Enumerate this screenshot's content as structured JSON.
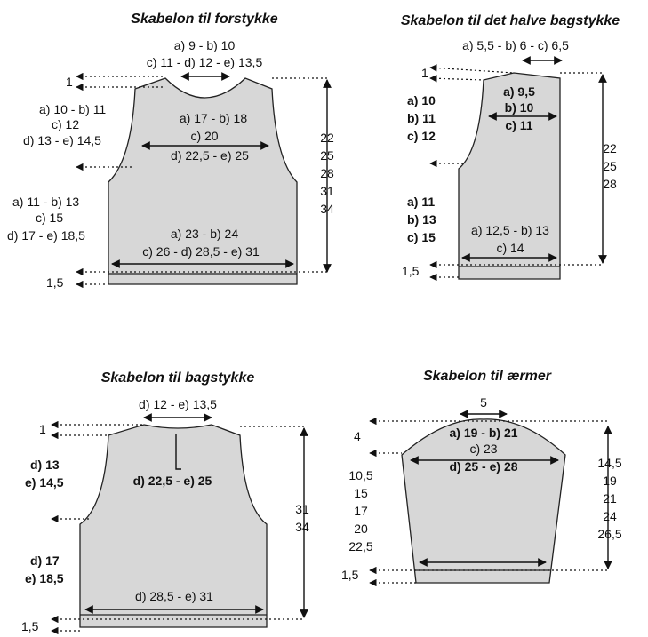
{
  "front": {
    "title": "Skabelon til forstykke",
    "neck_line1": "a) 9 - b) 10",
    "neck_line2": "c) 11 - d) 12 - e) 13,5",
    "top_label": "1",
    "armhole_1": "a) 10 - b) 11",
    "armhole_2": "c) 12",
    "armhole_3": "d) 13 - e) 14,5",
    "chest_1": "a) 17 - b) 18",
    "chest_2": "c) 20",
    "chest_3": "d) 22,5 - e) 25",
    "side_1": "a) 11 - b) 13",
    "side_2": "c) 15",
    "side_3": "d) 17 - e) 18,5",
    "hem_w1": "a) 23 - b) 24",
    "hem_w2": "c) 26 - d) 28,5 - e) 31",
    "hem_label": "1,5",
    "heights": [
      "22",
      "25",
      "28",
      "31",
      "34"
    ]
  },
  "half_back": {
    "title": "Skabelon til det halve bagstykke",
    "neck": "a) 5,5 - b) 6 - c) 6,5",
    "top_label": "1",
    "armhole": [
      "a) 10",
      "b) 11",
      "c) 12"
    ],
    "chest": [
      "a) 9,5",
      "b) 10",
      "c) 11"
    ],
    "side": [
      "a) 11",
      "b) 13",
      "c) 15"
    ],
    "hem_w1": "a) 12,5 - b) 13",
    "hem_w2": "c) 14",
    "hem_label": "1,5",
    "heights": [
      "22",
      "25",
      "28"
    ]
  },
  "back": {
    "title": "Skabelon til bagstykke",
    "neck": "d) 12 - e) 13,5",
    "top_label": "1",
    "armhole": [
      "d) 13",
      "e) 14,5"
    ],
    "chest": "d) 22,5 - e) 25",
    "side": [
      "d) 17",
      "e) 18,5"
    ],
    "hem_w": "d) 28,5 - e) 31",
    "hem_label": "1,5",
    "heights": [
      "31",
      "34"
    ]
  },
  "sleeve": {
    "title": "Skabelon til ærmer",
    "top": "5",
    "cap_label": "4",
    "width_1": "a) 19 - b) 21",
    "width_2": "c) 23",
    "width_3": "d) 25 - e) 28",
    "length_left": [
      "10,5",
      "15",
      "17",
      "20",
      "22,5"
    ],
    "length_right": [
      "14,5",
      "19",
      "21",
      "24",
      "26,5"
    ],
    "hem_label": "1,5"
  }
}
